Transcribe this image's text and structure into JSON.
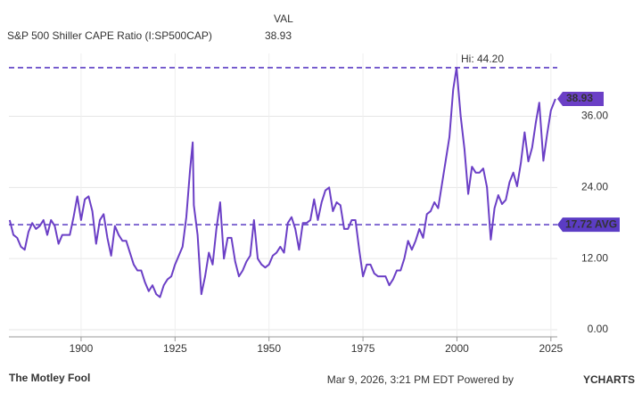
{
  "chart_data": {
    "type": "line",
    "title": "S&P 500 Shiller CAPE Ratio (I:SP500CAP)",
    "column_header": "VAL",
    "series": [
      {
        "name": "S&P 500 Shiller CAPE Ratio (I:SP500CAP)",
        "color": "#6b3fc6",
        "x": [
          1881,
          1882,
          1883,
          1884,
          1885,
          1886,
          1887,
          1888,
          1889,
          1890,
          1891,
          1892,
          1893,
          1894,
          1895,
          1896,
          1897,
          1898,
          1899,
          1900,
          1901,
          1902,
          1903,
          1904,
          1905,
          1906,
          1907,
          1908,
          1909,
          1910,
          1911,
          1912,
          1913,
          1914,
          1915,
          1916,
          1917,
          1918,
          1919,
          1920,
          1921,
          1922,
          1923,
          1924,
          1925,
          1926,
          1927,
          1928,
          1929,
          1929.7,
          1930,
          1931,
          1932,
          1933,
          1934,
          1935,
          1936,
          1937,
          1938,
          1939,
          1940,
          1941,
          1942,
          1943,
          1944,
          1945,
          1946,
          1947,
          1948,
          1949,
          1950,
          1951,
          1952,
          1953,
          1954,
          1955,
          1956,
          1957,
          1958,
          1959,
          1960,
          1961,
          1962,
          1963,
          1964,
          1965,
          1966,
          1967,
          1968,
          1969,
          1970,
          1971,
          1972,
          1973,
          1974,
          1975,
          1976,
          1977,
          1978,
          1979,
          1980,
          1981,
          1982,
          1983,
          1984,
          1985,
          1986,
          1987,
          1988,
          1989,
          1990,
          1991,
          1992,
          1993,
          1994,
          1995,
          1996,
          1997,
          1998,
          1999,
          1999.9,
          2001,
          2002,
          2003,
          2004,
          2005,
          2006,
          2007,
          2008,
          2009,
          2010,
          2011,
          2012,
          2013,
          2014,
          2015,
          2016,
          2017,
          2018,
          2019,
          2020,
          2021,
          2021.9,
          2023,
          2024,
          2025,
          2026.2
        ],
        "values": [
          18.5,
          16,
          15.5,
          14,
          13.5,
          16.5,
          18,
          17,
          17.5,
          18.5,
          16,
          18.5,
          17.5,
          14.5,
          16,
          16,
          16,
          19,
          22.5,
          18.5,
          22,
          22.5,
          20,
          14.5,
          18.5,
          19.5,
          15.5,
          12.5,
          17.5,
          16,
          15,
          15,
          13,
          11,
          10,
          10,
          8,
          6.5,
          7.5,
          6,
          5.5,
          7.5,
          8.5,
          9,
          11,
          12.5,
          14,
          19,
          27,
          31.6,
          21,
          16,
          6,
          9,
          13,
          11,
          17,
          21.5,
          12,
          15.5,
          15.5,
          11.5,
          9,
          10,
          11.5,
          12.5,
          18.5,
          12,
          11,
          10.5,
          11,
          12.5,
          13,
          14,
          13,
          18,
          19,
          17,
          13.5,
          18,
          18,
          18.5,
          22,
          18.5,
          21.5,
          23.5,
          24,
          20,
          21.5,
          21,
          17,
          17,
          18.5,
          18.5,
          13.5,
          9,
          11,
          11,
          9.5,
          9,
          9,
          9,
          7.5,
          8.5,
          10,
          10,
          12,
          15,
          13.5,
          15,
          17,
          15.5,
          19.5,
          20,
          21.5,
          20.5,
          24.5,
          28.5,
          32.5,
          40.5,
          44.2,
          36,
          30.5,
          22.9,
          27.5,
          26.5,
          26.5,
          27.2,
          24,
          15.2,
          20.5,
          22.7,
          21.2,
          21.9,
          24.9,
          26.5,
          24.2,
          28.1,
          33.3,
          28.4,
          30.7,
          35,
          38.3,
          28.5,
          33,
          37,
          38.93
        ]
      }
    ],
    "reference_lines": [
      {
        "value": 44.2,
        "label": "Hi: 44.20"
      },
      {
        "value": 17.72,
        "label": "17.72 AVG"
      }
    ],
    "xlim": [
      1880.8,
      2026.7
    ],
    "ylim": [
      -1.2,
      46.6
    ],
    "xticks": [
      1900,
      1925,
      1950,
      1975,
      2000,
      2025
    ],
    "yticks": [
      {
        "value": 0,
        "label": "0.00"
      },
      {
        "value": 12,
        "label": "12.00"
      },
      {
        "value": 24,
        "label": "24.00"
      },
      {
        "value": 36,
        "label": "36.00"
      }
    ],
    "grid": true
  },
  "footer": {
    "brand": "The Motley Fool",
    "timestamp": "Mar 9, 2026, 3:21 PM EDT Powered by",
    "provider": "YCHARTS"
  }
}
